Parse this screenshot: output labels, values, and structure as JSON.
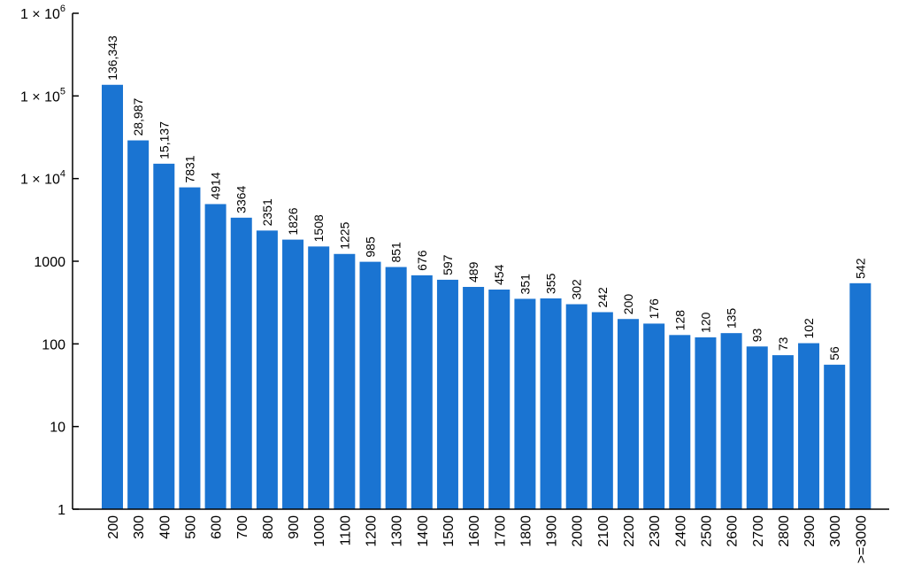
{
  "chart_data": {
    "type": "bar",
    "title": "",
    "xlabel": "",
    "ylabel": "",
    "log_scale_y": true,
    "ylim": [
      1,
      1000000
    ],
    "grid": false,
    "bar_color": "#1a74d2",
    "categories": [
      "200",
      "300",
      "400",
      "500",
      "600",
      "700",
      "800",
      "900",
      "1000",
      "1100",
      "1200",
      "1300",
      "1400",
      "1500",
      "1600",
      "1700",
      "1800",
      "1900",
      "2000",
      "2100",
      "2200",
      "2300",
      "2400",
      "2500",
      "2600",
      "2700",
      "2800",
      "2900",
      "3000",
      ">=3000"
    ],
    "values": [
      136343,
      28987,
      15137,
      7831,
      4914,
      3364,
      2351,
      1826,
      1508,
      1225,
      985,
      851,
      676,
      597,
      489,
      454,
      351,
      355,
      302,
      242,
      200,
      176,
      128,
      120,
      135,
      93,
      73,
      102,
      56,
      542
    ],
    "data_labels": [
      "136,343",
      "28,987",
      "15,137",
      "7831",
      "4914",
      "3364",
      "2351",
      "1826",
      "1508",
      "1225",
      "985",
      "851",
      "676",
      "597",
      "489",
      "454",
      "351",
      "355",
      "302",
      "242",
      "200",
      "176",
      "128",
      "120",
      "135",
      "93",
      "73",
      "102",
      "56",
      "542"
    ],
    "y_ticks": [
      {
        "value": 1,
        "base": "1",
        "exp": ""
      },
      {
        "value": 10,
        "base": "10",
        "exp": ""
      },
      {
        "value": 100,
        "base": "100",
        "exp": ""
      },
      {
        "value": 1000,
        "base": "1000",
        "exp": ""
      },
      {
        "value": 10000,
        "base": "1 × 10",
        "exp": "4"
      },
      {
        "value": 100000,
        "base": "1 × 10",
        "exp": "5"
      },
      {
        "value": 1000000,
        "base": "1 × 10",
        "exp": "6"
      }
    ]
  }
}
